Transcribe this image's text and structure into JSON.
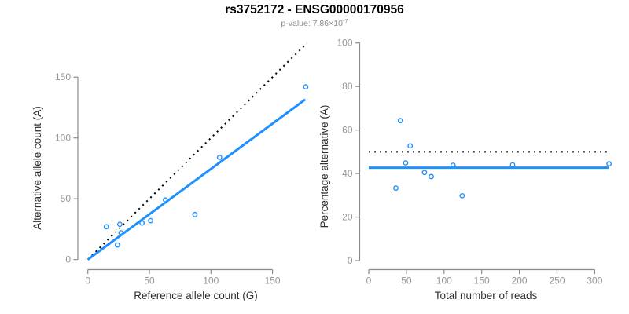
{
  "header": {
    "title": "rs3752172 - ENSG00000170956",
    "subtitle_prefix": "p-value: 7.86×10",
    "subtitle_exponent": "-7"
  },
  "colors": {
    "accent_blue": "#1E90FF",
    "dotted_line_black": "#000000",
    "axis_gray": "#8a8a8a",
    "tick_label_gray": "#969696",
    "axis_title_dark": "#2e2e2e",
    "subtitle_gray": "#8c8c8c",
    "background": "#ffffff"
  },
  "chart_data": [
    {
      "name": "allele-counts-scatter",
      "type": "scatter",
      "title": "",
      "xlabel": "Reference allele count (G)",
      "ylabel": "Alternative allele count (A)",
      "xlim": [
        0,
        183
      ],
      "ylim": [
        0,
        183
      ],
      "xticks": [
        0,
        50,
        100,
        150
      ],
      "yticks": [
        0,
        50,
        100,
        150
      ],
      "grid": false,
      "legend": "none",
      "marker": "open-circle",
      "points": [
        [
          15,
          27
        ],
        [
          24,
          12
        ],
        [
          26,
          29
        ],
        [
          27,
          22
        ],
        [
          44,
          30
        ],
        [
          51,
          32
        ],
        [
          63,
          49
        ],
        [
          87,
          37
        ],
        [
          107,
          84
        ],
        [
          177,
          142
        ]
      ],
      "lines": [
        {
          "name": "identity-line-dotted",
          "style": "dotted",
          "color": "black",
          "x1": 0,
          "y1": 0,
          "x2": 178,
          "y2": 178
        },
        {
          "name": "regression-line-blue",
          "style": "solid",
          "color": "blue",
          "x1": 0,
          "y1": 0,
          "x2": 176.6,
          "y2": 131.6,
          "slope": 0.745
        }
      ]
    },
    {
      "name": "percentage-vs-reads-scatter",
      "type": "scatter",
      "title": "",
      "xlabel": "Total number of reads",
      "ylabel": "Percentage alternative (A)",
      "xlim": [
        0,
        330
      ],
      "ylim": [
        0,
        100
      ],
      "xticks": [
        0,
        50,
        100,
        150,
        200,
        250,
        300
      ],
      "yticks": [
        0,
        20,
        40,
        60,
        80,
        100
      ],
      "grid": false,
      "legend": "none",
      "marker": "open-circle",
      "points": [
        [
          42,
          64.3
        ],
        [
          36,
          33.3
        ],
        [
          55,
          52.7
        ],
        [
          49,
          44.9
        ],
        [
          74,
          40.5
        ],
        [
          83,
          38.6
        ],
        [
          112,
          43.8
        ],
        [
          124,
          29.8
        ],
        [
          191,
          44.0
        ],
        [
          319,
          44.5
        ]
      ],
      "lines": [
        {
          "name": "expected-50-percent-dotted",
          "style": "dotted",
          "color": "black",
          "x1": 0,
          "y1": 50,
          "x2": 319,
          "y2": 50
        },
        {
          "name": "mean-percentage-blue",
          "style": "solid",
          "color": "blue",
          "x1": 0,
          "y1": 42.7,
          "x2": 319,
          "y2": 42.7
        }
      ]
    }
  ]
}
